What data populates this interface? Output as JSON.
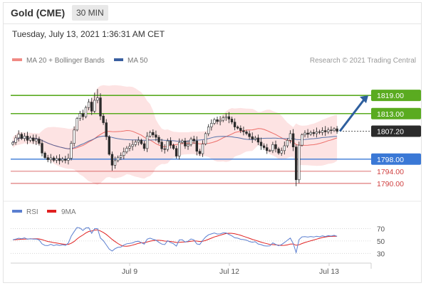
{
  "header": {
    "title": "Gold (CME)",
    "timeframe": "30 MIN"
  },
  "timestamp": "Tuesday, July 13, 2021 1:36:31 AM CET",
  "legend": {
    "ma20_bb": "MA 20 + Bollinger Bands",
    "ma50": "MA 50",
    "rsi": "RSI",
    "rsi_ma": "9MA",
    "credit": "Research © 2021 Trading Central"
  },
  "colors": {
    "candle": "#2b2b2b",
    "ma20": "#e8504a",
    "ma50": "#3a5fa0",
    "bands": "#fde3e3",
    "resistance": "#5aab20",
    "support": "#3a78d6",
    "minor_support": "#d04040",
    "rsi": "#5b7fd0",
    "rsi_ma": "#e02020",
    "arrow": "#2e5f9e",
    "current": "#2b2b2b"
  },
  "chart_data": [
    {
      "type": "candlestick",
      "ylim": [
        1786,
        1827
      ],
      "x_ticks": [
        "Jul 9",
        "Jul 12",
        "Jul 13"
      ],
      "levels": [
        {
          "value": 1819.0,
          "label": "1819.00",
          "kind": "resistance"
        },
        {
          "value": 1813.0,
          "label": "1813.00",
          "kind": "resistance"
        },
        {
          "value": 1807.2,
          "label": "1807.20",
          "kind": "current"
        },
        {
          "value": 1798.0,
          "label": "1798.00",
          "kind": "support"
        },
        {
          "value": 1794.0,
          "label": "1794.00",
          "kind": "minor_support"
        },
        {
          "value": 1790.0,
          "label": "1790.00",
          "kind": "minor_support"
        }
      ],
      "close": [
        1803.5,
        1805.0,
        1806.2,
        1804.8,
        1805.6,
        1804.2,
        1805.0,
        1804.0,
        1804.6,
        1803.2,
        1800.0,
        1798.5,
        1797.8,
        1798.4,
        1797.6,
        1798.2,
        1797.5,
        1798.0,
        1797.6,
        1798.3,
        1803.2,
        1807.6,
        1811.4,
        1813.0,
        1812.0,
        1815.0,
        1816.8,
        1813.8,
        1817.4,
        1818.2,
        1812.2,
        1810.0,
        1805.4,
        1799.6,
        1796.0,
        1797.5,
        1798.6,
        1799.2,
        1800.4,
        1801.6,
        1802.2,
        1802.8,
        1803.6,
        1804.2,
        1803.1,
        1801.5,
        1805.6,
        1806.8,
        1806.0,
        1805.2,
        1803.6,
        1801.4,
        1801.2,
        1804.0,
        1802.6,
        1801.5,
        1799.0,
        1803.5,
        1804.0,
        1802.3,
        1802.8,
        1804.6,
        1804.0,
        1800.6,
        1799.8,
        1803.0,
        1806.4,
        1808.6,
        1809.8,
        1811.0,
        1810.4,
        1810.8,
        1811.6,
        1812.0,
        1811.2,
        1810.2,
        1808.6,
        1808.2,
        1807.4,
        1807.0,
        1806.4,
        1805.4,
        1804.6,
        1805.0,
        1803.6,
        1802.4,
        1801.8,
        1800.8,
        1800.8,
        1802.8,
        1801.4,
        1800.0,
        1800.8,
        1802.4,
        1804.2,
        1806.4,
        1802.0,
        1791.2,
        1802.6,
        1806.0,
        1806.6,
        1806.2,
        1806.8,
        1806.4,
        1807.0,
        1806.8,
        1807.4,
        1807.0,
        1807.6,
        1807.4,
        1808.0,
        1807.2
      ],
      "rsi": {
        "ylim": [
          20,
          82
        ],
        "ticks": [
          70,
          50,
          30
        ],
        "rsi": [
          52.0,
          53.0,
          54.5,
          53.6,
          55.0,
          52.9,
          53.6,
          53.1,
          53.2,
          51.7,
          45.4,
          42.9,
          42.5,
          44.6,
          42.6,
          43.9,
          42.8,
          43.9,
          42.7,
          46.5,
          57.9,
          65.1,
          71.9,
          70.9,
          67.0,
          71.1,
          71.4,
          62.4,
          69.9,
          69.9,
          54.7,
          50.4,
          43.6,
          36.9,
          33.8,
          37.6,
          39.7,
          40.2,
          43.4,
          45.5,
          46.1,
          46.9,
          49.0,
          49.6,
          47.3,
          44.9,
          53.0,
          54.6,
          52.7,
          51.5,
          47.8,
          45.0,
          44.1,
          50.5,
          47.4,
          45.6,
          41.7,
          51.7,
          52.0,
          48.2,
          49.7,
          53.3,
          51.8,
          45.2,
          44.3,
          50.9,
          56.4,
          60.0,
          61.5,
          62.9,
          61.2,
          61.5,
          63.0,
          63.0,
          60.5,
          58.2,
          55.1,
          54.6,
          52.7,
          52.3,
          51.3,
          49.2,
          48.0,
          48.8,
          45.2,
          44.1,
          42.3,
          41.8,
          42.0,
          47.0,
          44.4,
          42.3,
          44.2,
          47.4,
          51.1,
          54.7,
          46.0,
          31.3,
          52.3,
          56.6,
          57.1,
          56.3,
          57.2,
          56.4,
          57.5,
          56.7,
          58.2,
          57.2,
          58.6,
          57.9,
          59.1,
          57.6
        ],
        "rsi_ma": [
          52.0,
          52.2,
          52.5,
          52.8,
          53.1,
          53.2,
          53.4,
          53.4,
          53.5,
          53.3,
          52.1,
          50.6,
          49.2,
          48.4,
          47.3,
          46.6,
          45.8,
          45.2,
          44.6,
          44.5,
          46.3,
          49.2,
          53.3,
          56.9,
          59.6,
          62.9,
          65.4,
          66.2,
          67.7,
          68.0,
          66.1,
          63.7,
          60.5,
          56.6,
          52.5,
          49.1,
          45.8,
          43.1,
          41.7,
          41.5,
          42.1,
          43.3,
          44.7,
          46.2,
          47.0,
          47.3,
          48.4,
          49.7,
          50.5,
          51.1,
          51.1,
          50.7,
          49.9,
          49.7,
          49.3,
          48.6,
          47.5,
          47.8,
          48.3,
          48.4,
          48.8,
          49.5,
          50.2,
          49.8,
          49.2,
          49.5,
          50.9,
          52.7,
          54.6,
          56.5,
          57.9,
          59.3,
          60.8,
          62.0,
          62.5,
          62.4,
          61.6,
          60.5,
          59.1,
          57.6,
          55.9,
          54.3,
          52.6,
          51.2,
          49.7,
          48.1,
          46.8,
          45.6,
          44.5,
          44.1,
          43.8,
          43.2,
          42.9,
          43.0,
          43.7,
          45.0,
          45.1,
          43.1,
          43.9,
          45.8,
          47.5,
          48.9,
          50.3,
          51.6,
          53.0,
          54.3,
          55.6,
          56.4,
          57.2,
          57.3,
          57.8,
          57.6
        ]
      }
    }
  ]
}
